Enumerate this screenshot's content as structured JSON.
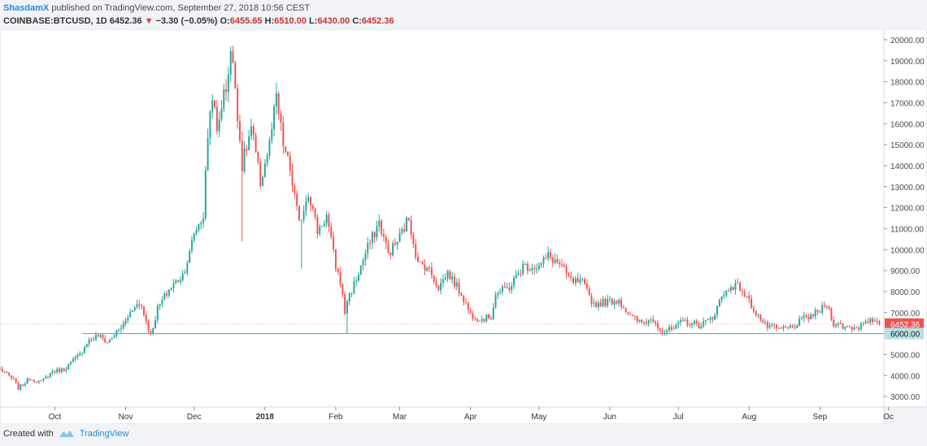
{
  "header": {
    "user": "ShasdamX",
    "published": "published on TradingView.com, September 27, 2018 10:56 CEST",
    "symbol": "COINBASE:BTCUSD, 1D",
    "last": "6452.36",
    "change": "−3.30 (−0.05%)",
    "o_label": "O:",
    "o": "6455.65",
    "h_label": "H:",
    "h": "6510.00",
    "l_label": "L:",
    "l": "6430.00",
    "c_label": "C:",
    "c": "6452.36"
  },
  "footer": {
    "created": "Created with",
    "brand": "TradingView",
    "logo_icon": "tradingview-logo-icon"
  },
  "colors": {
    "up": "#26a69a",
    "down": "#ef5350",
    "support": "#4fb6c6",
    "last_price": "#ef5350"
  },
  "chart_data": {
    "type": "candlestick",
    "y_axis": {
      "min": 2500,
      "max": 20500,
      "ticks": [
        3000,
        4000,
        5000,
        6000,
        7000,
        8000,
        9000,
        10000,
        11000,
        12000,
        13000,
        14000,
        15000,
        16000,
        17000,
        18000,
        19000,
        20000
      ],
      "tick_labels": [
        "3000.00",
        "4000.00",
        "5000.00",
        "6000.00",
        "7000.00",
        "8000.00",
        "9000.00",
        "10000.00",
        "11000.00",
        "12000.00",
        "13000.00",
        "14000.00",
        "15000.00",
        "16000.00",
        "17000.00",
        "18000.00",
        "19000.00",
        "20000.00"
      ]
    },
    "x_axis": {
      "start": "2017-09-07",
      "end": "2018-09-29",
      "ticks": [
        {
          "date": "2017-10-01",
          "label": "Oct"
        },
        {
          "date": "2017-11-01",
          "label": "Nov"
        },
        {
          "date": "2017-12-01",
          "label": "Dec"
        },
        {
          "date": "2018-01-01",
          "label": "2018",
          "bold": true
        },
        {
          "date": "2018-02-01",
          "label": "Feb"
        },
        {
          "date": "2018-03-01",
          "label": "Mar"
        },
        {
          "date": "2018-04-01",
          "label": "Apr"
        },
        {
          "date": "2018-05-01",
          "label": "May"
        },
        {
          "date": "2018-06-01",
          "label": "Jun"
        },
        {
          "date": "2018-07-01",
          "label": "Jul"
        },
        {
          "date": "2018-08-01",
          "label": "Aug"
        },
        {
          "date": "2018-09-01",
          "label": "Sep"
        },
        {
          "date": "2018-10-01",
          "label": "Oc"
        }
      ]
    },
    "approx_closes": [
      [
        "2017-09-07",
        4300
      ],
      [
        "2017-09-13",
        3800
      ],
      [
        "2017-09-15",
        3400
      ],
      [
        "2017-09-20",
        3850
      ],
      [
        "2017-09-25",
        3700
      ],
      [
        "2017-09-30",
        4200
      ],
      [
        "2017-10-05",
        4300
      ],
      [
        "2017-10-12",
        5000
      ],
      [
        "2017-10-15",
        5600
      ],
      [
        "2017-10-20",
        5900
      ],
      [
        "2017-10-24",
        5600
      ],
      [
        "2017-10-31",
        6400
      ],
      [
        "2017-11-05",
        7400
      ],
      [
        "2017-11-08",
        7300
      ],
      [
        "2017-11-10",
        6600
      ],
      [
        "2017-11-12",
        5900
      ],
      [
        "2017-11-15",
        7200
      ],
      [
        "2017-11-20",
        8100
      ],
      [
        "2017-11-26",
        8800
      ],
      [
        "2017-11-29",
        9800
      ],
      [
        "2017-12-01",
        10800
      ],
      [
        "2017-12-05",
        11600
      ],
      [
        "2017-12-07",
        15500
      ],
      [
        "2017-12-09",
        17500
      ],
      [
        "2017-12-11",
        15500
      ],
      [
        "2017-12-13",
        17000
      ],
      [
        "2017-12-15",
        17700
      ],
      [
        "2017-12-17",
        19500
      ],
      [
        "2017-12-19",
        17800
      ],
      [
        "2017-12-22",
        14000
      ],
      [
        "2017-12-26",
        15800
      ],
      [
        "2017-12-30",
        13200
      ],
      [
        "2018-01-03",
        15000
      ],
      [
        "2018-01-06",
        17200
      ],
      [
        "2018-01-09",
        15000
      ],
      [
        "2018-01-12",
        13800
      ],
      [
        "2018-01-16",
        11200
      ],
      [
        "2018-01-20",
        12800
      ],
      [
        "2018-01-24",
        10900
      ],
      [
        "2018-01-28",
        11600
      ],
      [
        "2018-02-01",
        9200
      ],
      [
        "2018-02-03",
        8500
      ],
      [
        "2018-02-05",
        7000
      ],
      [
        "2018-02-06",
        7600
      ],
      [
        "2018-02-10",
        8600
      ],
      [
        "2018-02-15",
        10100
      ],
      [
        "2018-02-20",
        11300
      ],
      [
        "2018-02-24",
        9800
      ],
      [
        "2018-02-28",
        10400
      ],
      [
        "2018-03-05",
        11500
      ],
      [
        "2018-03-09",
        9300
      ],
      [
        "2018-03-13",
        9200
      ],
      [
        "2018-03-18",
        8200
      ],
      [
        "2018-03-22",
        8900
      ],
      [
        "2018-03-28",
        7900
      ],
      [
        "2018-04-01",
        6900
      ],
      [
        "2018-04-06",
        6700
      ],
      [
        "2018-04-10",
        6800
      ],
      [
        "2018-04-12",
        7900
      ],
      [
        "2018-04-18",
        8200
      ],
      [
        "2018-04-24",
        9200
      ],
      [
        "2018-05-01",
        9200
      ],
      [
        "2018-05-05",
        9700
      ],
      [
        "2018-05-10",
        9300
      ],
      [
        "2018-05-15",
        8500
      ],
      [
        "2018-05-20",
        8400
      ],
      [
        "2018-05-25",
        7400
      ],
      [
        "2018-05-30",
        7500
      ],
      [
        "2018-06-05",
        7600
      ],
      [
        "2018-06-10",
        6800
      ],
      [
        "2018-06-15",
        6500
      ],
      [
        "2018-06-20",
        6700
      ],
      [
        "2018-06-24",
        6100
      ],
      [
        "2018-06-29",
        6200
      ],
      [
        "2018-07-03",
        6600
      ],
      [
        "2018-07-10",
        6400
      ],
      [
        "2018-07-16",
        6700
      ],
      [
        "2018-07-18",
        7400
      ],
      [
        "2018-07-24",
        8300
      ],
      [
        "2018-07-28",
        8200
      ],
      [
        "2018-08-04",
        7000
      ],
      [
        "2018-08-08",
        6400
      ],
      [
        "2018-08-14",
        6200
      ],
      [
        "2018-08-20",
        6300
      ],
      [
        "2018-08-25",
        6700
      ],
      [
        "2018-08-31",
        7000
      ],
      [
        "2018-09-04",
        7400
      ],
      [
        "2018-09-07",
        6500
      ],
      [
        "2018-09-12",
        6300
      ],
      [
        "2018-09-18",
        6300
      ],
      [
        "2018-09-21",
        6700
      ],
      [
        "2018-09-25",
        6500
      ],
      [
        "2018-09-27",
        6452
      ]
    ],
    "notable_wicks": [
      [
        "2017-12-22",
        10400
      ],
      [
        "2018-01-17",
        9100
      ],
      [
        "2018-02-06",
        6000
      ]
    ],
    "support_line": {
      "value": 6000,
      "label": "6000.00",
      "from": "2017-10-13"
    },
    "last_price_line": {
      "value": 6452.36,
      "label": "6452.36"
    }
  }
}
